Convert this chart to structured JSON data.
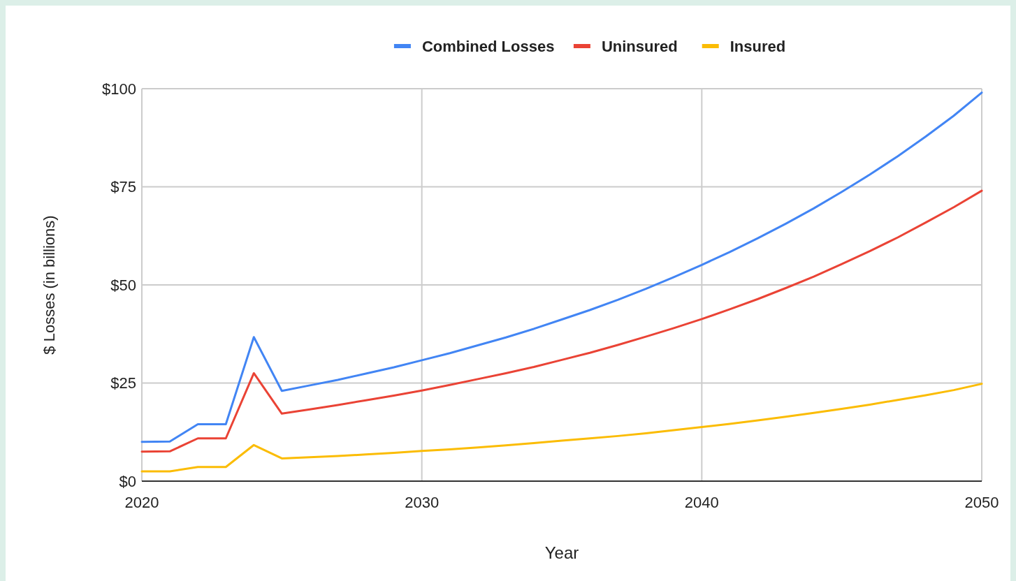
{
  "chart_data": {
    "type": "line",
    "xlabel": "Year",
    "ylabel": "$ Losses (in billions)",
    "x": [
      2020,
      2021,
      2022,
      2023,
      2024,
      2025,
      2026,
      2027,
      2028,
      2029,
      2030,
      2031,
      2032,
      2033,
      2034,
      2035,
      2036,
      2037,
      2038,
      2039,
      2040,
      2041,
      2042,
      2043,
      2044,
      2045,
      2046,
      2047,
      2048,
      2049,
      2050
    ],
    "series": [
      {
        "name": "Combined Losses",
        "color": "#4285f4",
        "values": [
          10,
          10.1,
          14.5,
          14.5,
          36.7,
          23,
          24.4,
          25.8,
          27.4,
          29,
          30.8,
          32.6,
          34.6,
          36.6,
          38.8,
          41.2,
          43.6,
          46.2,
          49,
          52,
          55.1,
          58.4,
          61.9,
          65.6,
          69.5,
          73.7,
          78.1,
          82.8,
          87.8,
          93.1,
          99
        ]
      },
      {
        "name": "Uninsured",
        "color": "#ea4335",
        "values": [
          7.5,
          7.6,
          10.9,
          10.9,
          27.5,
          17.2,
          18.3,
          19.4,
          20.6,
          21.8,
          23.1,
          24.5,
          26,
          27.5,
          29.1,
          30.9,
          32.7,
          34.7,
          36.8,
          39,
          41.3,
          43.8,
          46.4,
          49.2,
          52.1,
          55.3,
          58.6,
          62.1,
          65.9,
          69.8,
          74
        ]
      },
      {
        "name": "Insured",
        "color": "#fbbc04",
        "values": [
          2.5,
          2.5,
          3.6,
          3.6,
          9.2,
          5.8,
          6.1,
          6.4,
          6.8,
          7.2,
          7.7,
          8.1,
          8.6,
          9.1,
          9.7,
          10.3,
          10.9,
          11.5,
          12.2,
          13,
          13.8,
          14.6,
          15.5,
          16.4,
          17.4,
          18.4,
          19.5,
          20.7,
          21.9,
          23.2,
          24.8
        ]
      }
    ],
    "xlim": [
      2020,
      2050
    ],
    "xticks": [
      2020,
      2030,
      2040,
      2050
    ],
    "ylim": [
      0,
      100
    ],
    "yticks": [
      {
        "value": 0,
        "label": "$0"
      },
      {
        "value": 25,
        "label": "$25"
      },
      {
        "value": 50,
        "label": "$50"
      },
      {
        "value": 75,
        "label": "$75"
      },
      {
        "value": 100,
        "label": "$100"
      }
    ],
    "grid": true,
    "legend": "top",
    "marker": "none",
    "line_style": "solid"
  }
}
